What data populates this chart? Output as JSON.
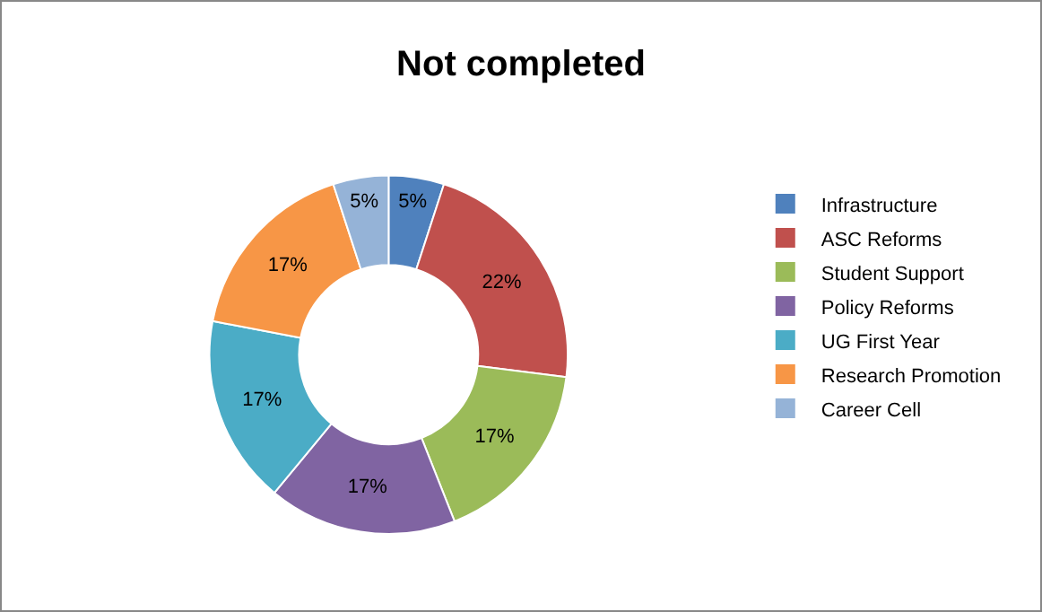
{
  "chart_data": {
    "type": "donut",
    "title": "Not completed",
    "categories": [
      "Infrastructure",
      "ASC Reforms",
      "Student Support",
      "Policy Reforms",
      "UG First Year",
      "Research Promotion",
      "Career Cell"
    ],
    "values": [
      5,
      22,
      17,
      17,
      17,
      17,
      5
    ],
    "value_labels": [
      "5%",
      "22%",
      "17%",
      "17%",
      "17%",
      "17%",
      "5%"
    ],
    "colors": [
      "#4f81bd",
      "#c0504d",
      "#9bbb59",
      "#8064a2",
      "#4bacc6",
      "#f79646",
      "#95b3d7"
    ],
    "legend": "right"
  }
}
